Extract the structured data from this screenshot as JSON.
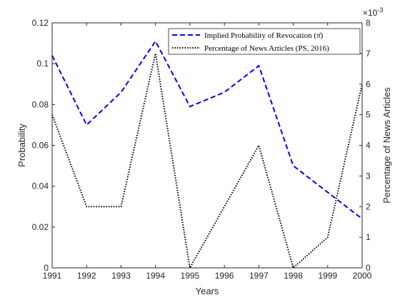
{
  "chart_data": {
    "type": "line",
    "x": [
      1991,
      1992,
      1993,
      1994,
      1995,
      1996,
      1997,
      1998,
      1999,
      2000
    ],
    "xlabel": "Years",
    "xlim": [
      1991,
      2000
    ],
    "x_ticks": [
      "1991",
      "1992",
      "1993",
      "1994",
      "1995",
      "1996",
      "1997",
      "1998",
      "1999",
      "2000"
    ],
    "left_axis": {
      "label": "Probability",
      "ylim": [
        0,
        0.12
      ],
      "ticks": [
        0,
        0.02,
        0.04,
        0.06,
        0.08,
        0.1,
        0.12
      ],
      "tick_labels": [
        "0",
        "0.02",
        "0.04",
        "0.06",
        "0.08",
        "0.1",
        "0.12"
      ]
    },
    "right_axis": {
      "label": "Percentage of News Articles",
      "ylim": [
        0,
        8
      ],
      "ticks": [
        0,
        1,
        2,
        3,
        4,
        5,
        6,
        7,
        8
      ],
      "tick_labels": [
        "0",
        "1",
        "2",
        "3",
        "4",
        "5",
        "6",
        "7",
        "8"
      ],
      "multiplier": "×10",
      "exponent": "-3"
    },
    "grid": false,
    "legend_position": "top-right",
    "series": [
      {
        "name": "Implied Probability of Revocation (π̄)",
        "axis": "left",
        "style": "dashed",
        "color": "#0000ff",
        "values": [
          0.104,
          0.07,
          0.086,
          0.111,
          0.079,
          0.086,
          0.099,
          0.05,
          0.037,
          0.024
        ]
      },
      {
        "name": "Percentage of News Articles (PS, 2016)",
        "axis": "right",
        "style": "dotted",
        "color": "#000000",
        "values": [
          5,
          2,
          2,
          7,
          0,
          2,
          4,
          0,
          1,
          6
        ]
      }
    ]
  }
}
